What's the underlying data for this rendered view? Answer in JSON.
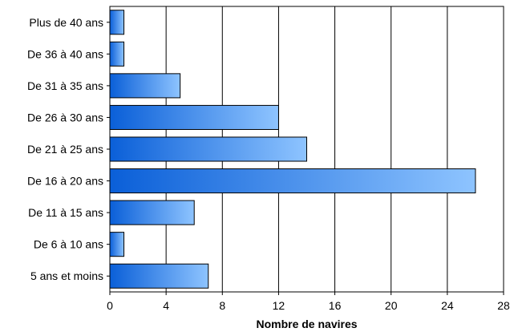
{
  "chart_data": {
    "type": "bar",
    "orientation": "horizontal",
    "categories": [
      "Plus de 40 ans",
      "De 36 à 40 ans",
      "De 31 à 35 ans",
      "De 26 à 30 ans",
      "De 21 à 25 ans",
      "De 16 à 20 ans",
      "De 11 à 15 ans",
      "De 6 à 10 ans",
      "5 ans et moins"
    ],
    "values": [
      1,
      1,
      5,
      12,
      14,
      26,
      6,
      1,
      7
    ],
    "xlabel": "Nombre de navires",
    "ylabel": "",
    "xlim": [
      0,
      28
    ],
    "xticks": [
      "0",
      "4",
      "8",
      "12",
      "16",
      "20",
      "24",
      "28"
    ],
    "grid": "vertical",
    "legend": "none",
    "colors": {
      "bar_start": "#0a5fd8",
      "bar_end": "#8ec4ff",
      "bar_stroke": "#000000",
      "grid": "#000000"
    }
  }
}
